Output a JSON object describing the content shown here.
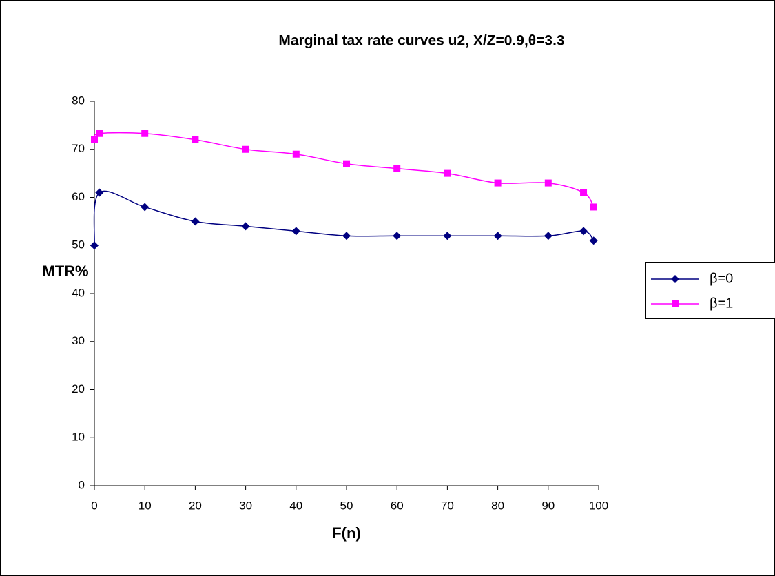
{
  "chart_data": {
    "type": "line",
    "title": "Marginal tax rate curves u2, X/Z=0.9,θ=3.3",
    "x_label": "F(n)",
    "y_label": "MTR%",
    "x": [
      0,
      1,
      10,
      20,
      30,
      40,
      50,
      60,
      70,
      80,
      90,
      97,
      99
    ],
    "series": [
      {
        "name": "β=0",
        "color": "#000080",
        "marker": "diamond",
        "values": [
          50,
          61,
          58,
          55,
          54,
          53,
          52,
          52,
          52,
          52,
          52,
          53,
          51
        ]
      },
      {
        "name": "β=1",
        "color": "#ff00ff",
        "marker": "square",
        "values": [
          72,
          73.3,
          73.3,
          72,
          70,
          69,
          67,
          66,
          65,
          63,
          63,
          61,
          58
        ]
      }
    ],
    "xlim": [
      0,
      100
    ],
    "xticks": [
      0,
      10,
      20,
      30,
      40,
      50,
      60,
      70,
      80,
      90,
      100
    ],
    "ylim": [
      0,
      80
    ],
    "yticks": [
      0,
      10,
      20,
      30,
      40,
      50,
      60,
      70,
      80
    ],
    "grid": false,
    "legend": "right"
  }
}
